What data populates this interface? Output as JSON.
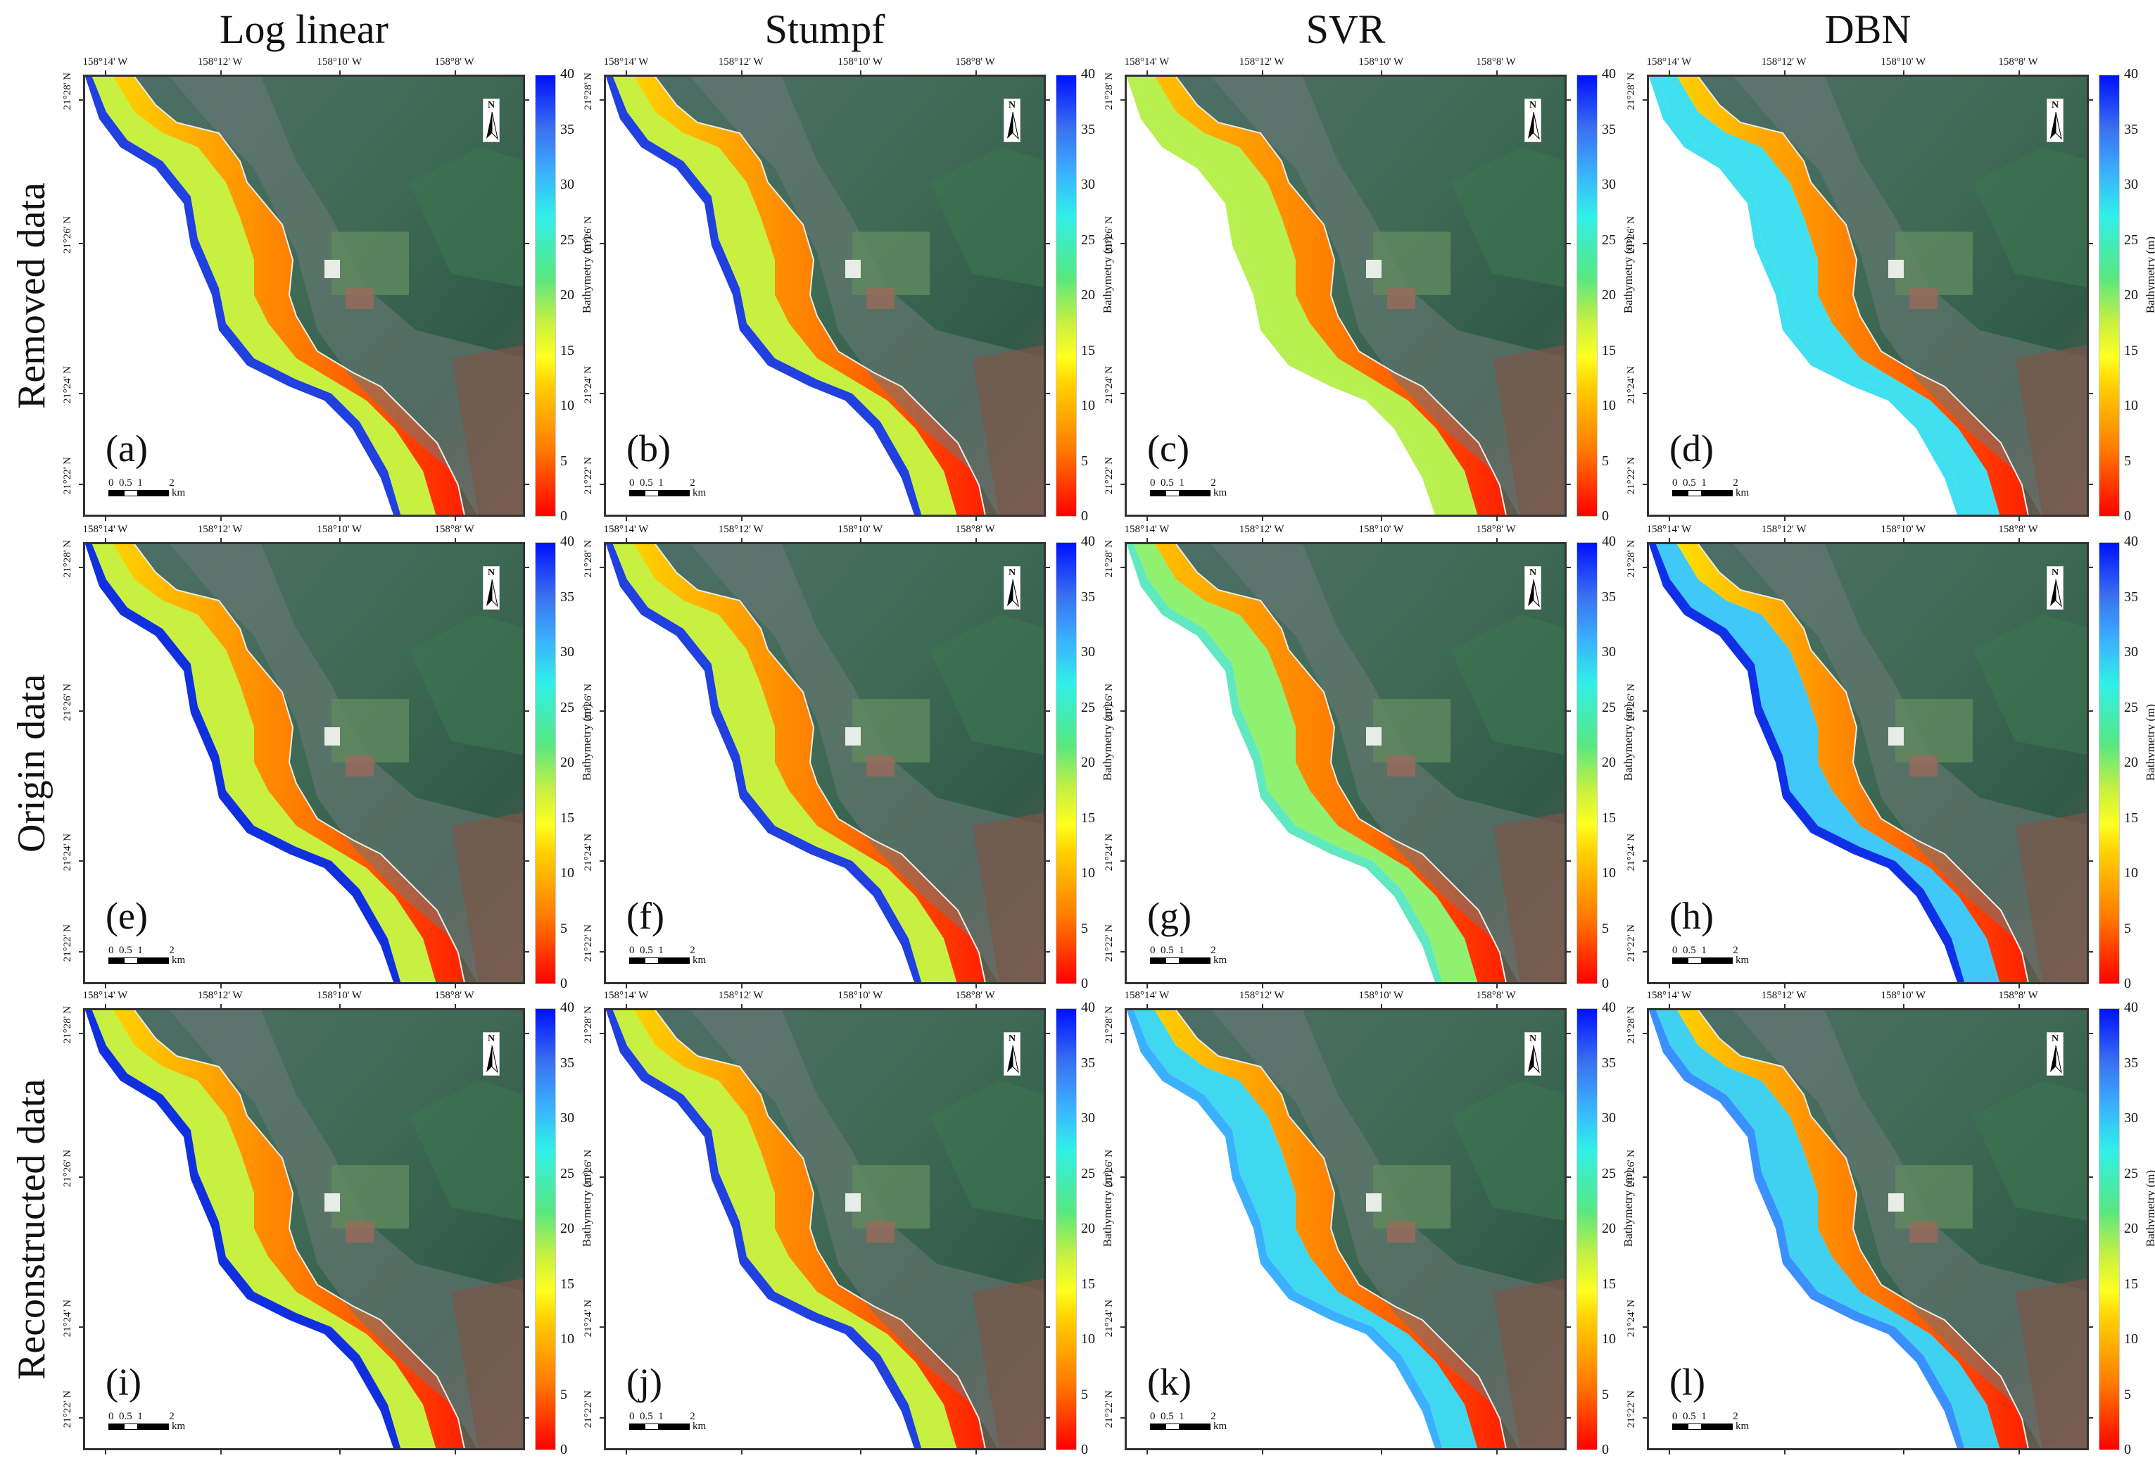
{
  "columns": [
    {
      "title": "Log linear"
    },
    {
      "title": "Stumpf"
    },
    {
      "title": "SVR"
    },
    {
      "title": "DBN"
    }
  ],
  "rows": [
    {
      "label": "Removed data"
    },
    {
      "label": "Origin data"
    },
    {
      "label": "Reconstructed data"
    }
  ],
  "panels": [
    {
      "letter": "(a)",
      "row": 0,
      "col": 0,
      "offshore_color": "#c8f040",
      "band_color": "#ffd200",
      "deep_edge": "#2040e0"
    },
    {
      "letter": "(b)",
      "row": 0,
      "col": 1,
      "offshore_color": "#c8f040",
      "band_color": "#ffd200",
      "deep_edge": "#2040e0"
    },
    {
      "letter": "(c)",
      "row": 0,
      "col": 2,
      "offshore_color": "#b8f050",
      "band_color": "#ffc000",
      "deep_edge": "#b8f050"
    },
    {
      "letter": "(d)",
      "row": 0,
      "col": 3,
      "offshore_color": "#40e0f0",
      "band_color": "#ffd000",
      "deep_edge": "#40e0f0"
    },
    {
      "letter": "(e)",
      "row": 1,
      "col": 0,
      "offshore_color": "#c8f040",
      "band_color": "#ffd200",
      "deep_edge": "#1030e0"
    },
    {
      "letter": "(f)",
      "row": 1,
      "col": 1,
      "offshore_color": "#c8f040",
      "band_color": "#ffd200",
      "deep_edge": "#2040e0"
    },
    {
      "letter": "(g)",
      "row": 1,
      "col": 2,
      "offshore_color": "#90f070",
      "band_color": "#ffc000",
      "deep_edge": "#60e8c0"
    },
    {
      "letter": "(h)",
      "row": 1,
      "col": 3,
      "offshore_color": "#40c8f8",
      "band_color": "#ffe000",
      "deep_edge": "#1030e8"
    },
    {
      "letter": "(i)",
      "row": 2,
      "col": 0,
      "offshore_color": "#c8f040",
      "band_color": "#ffd200",
      "deep_edge": "#1030e0"
    },
    {
      "letter": "(j)",
      "row": 2,
      "col": 1,
      "offshore_color": "#c8f040",
      "band_color": "#ffd200",
      "deep_edge": "#2040e0"
    },
    {
      "letter": "(k)",
      "row": 2,
      "col": 2,
      "offshore_color": "#40d8f0",
      "band_color": "#ffd000",
      "deep_edge": "#3ab0ff"
    },
    {
      "letter": "(l)",
      "row": 2,
      "col": 3,
      "offshore_color": "#40d0f0",
      "band_color": "#ffd000",
      "deep_edge": "#3a90ff"
    }
  ],
  "axes": {
    "lon_labels": [
      "158°14' W",
      "158°12' W",
      "158°10' W",
      "158°8' W"
    ],
    "lat_labels": [
      "21°28' N",
      "21°26' N",
      "21°24' N",
      "21°22' N"
    ]
  },
  "scalebar": {
    "ticks": "0  0.5  1          2",
    "unit": "km"
  },
  "north_arrow": {
    "label": "N"
  },
  "colorbar": {
    "title": "Bathymetry (m)",
    "ticks": [
      "40",
      "35",
      "30",
      "25",
      "20",
      "15",
      "10",
      "5",
      "0"
    ],
    "min": 0,
    "max": 40,
    "colors": [
      "#ff0000",
      "#ff7a00",
      "#ffff20",
      "#58e880",
      "#30f0e8",
      "#3a70f0",
      "#0010ff"
    ]
  }
}
